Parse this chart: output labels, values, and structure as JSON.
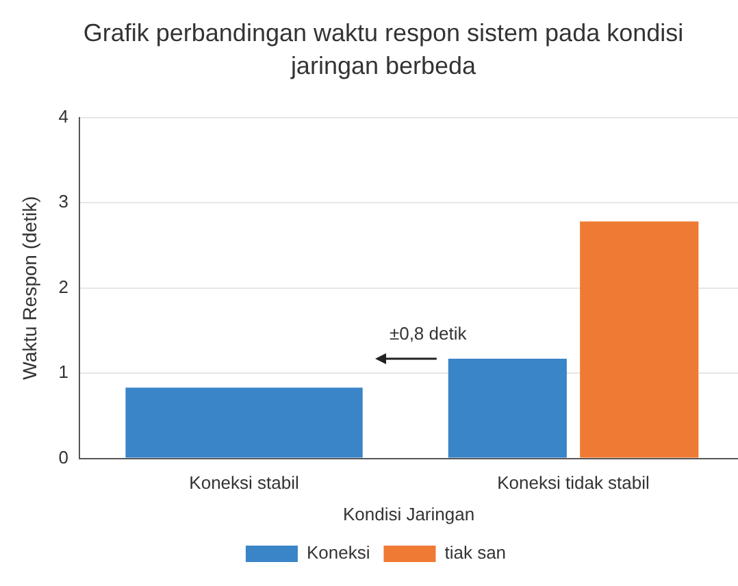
{
  "chart_data": {
    "type": "bar",
    "title": "Grafik perbandingan waktu respon sistem pada kondisi jaringan berbeda",
    "xlabel": "Kondisi Jaringan",
    "ylabel": "Waktu Respon (detik)",
    "categories": [
      "Koneksi stabil",
      "Koneksi tidak stabil"
    ],
    "series": [
      {
        "name": "Koneksi",
        "color": "#3a84c8",
        "values": [
          0.83,
          1.17
        ]
      },
      {
        "name": "tiak san",
        "color": "#ef7a33",
        "values": [
          null,
          2.78
        ]
      }
    ],
    "ylim": [
      0,
      4
    ],
    "yticks": [
      0,
      1,
      2,
      3,
      4
    ],
    "grid": "y",
    "legend": "bottom",
    "annotations": [
      "±0,8 detik"
    ]
  }
}
